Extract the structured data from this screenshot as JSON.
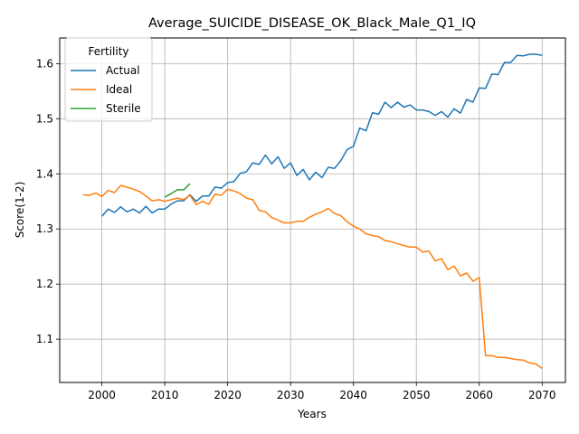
{
  "chart_data": {
    "type": "line",
    "title": "Average_SUICIDE_DISEASE_OK_Black_Male_Q1_IQ",
    "xlabel": "Years",
    "ylabel": "Score(1-2)",
    "xlim": [
      1993.3,
      2073.7
    ],
    "ylim": [
      1.0215,
      1.6465
    ],
    "xticks": [
      2000,
      2010,
      2020,
      2030,
      2040,
      2050,
      2060,
      2070
    ],
    "yticks": [
      1.1,
      1.2,
      1.3,
      1.4,
      1.5,
      1.6
    ],
    "grid": true,
    "legend": {
      "title": "Fertility",
      "placement": "upper-left"
    },
    "series": [
      {
        "name": "Actual",
        "color": "#1f77b4",
        "x": [
          2000,
          2001,
          2002,
          2003,
          2004,
          2005,
          2006,
          2007,
          2008,
          2009,
          2010,
          2011,
          2012,
          2013,
          2014,
          2015,
          2016,
          2017,
          2018,
          2019,
          2020,
          2021,
          2022,
          2023,
          2024,
          2025,
          2026,
          2027,
          2028,
          2029,
          2030,
          2031,
          2032,
          2033,
          2034,
          2035,
          2036,
          2037,
          2038,
          2039,
          2040,
          2041,
          2042,
          2043,
          2044,
          2045,
          2046,
          2047,
          2048,
          2049,
          2050,
          2051,
          2052,
          2053,
          2054,
          2055,
          2056,
          2057,
          2058,
          2059,
          2060,
          2061,
          2062,
          2063,
          2064,
          2065,
          2066,
          2067,
          2068,
          2069,
          2070
        ],
        "values": [
          1.323,
          1.336,
          1.33,
          1.34,
          1.331,
          1.336,
          1.329,
          1.341,
          1.329,
          1.336,
          1.336,
          1.345,
          1.351,
          1.351,
          1.362,
          1.35,
          1.36,
          1.36,
          1.376,
          1.374,
          1.384,
          1.386,
          1.401,
          1.404,
          1.42,
          1.417,
          1.434,
          1.418,
          1.431,
          1.41,
          1.42,
          1.397,
          1.408,
          1.389,
          1.403,
          1.393,
          1.412,
          1.41,
          1.424,
          1.444,
          1.45,
          1.483,
          1.478,
          1.511,
          1.508,
          1.53,
          1.52,
          1.53,
          1.521,
          1.525,
          1.516,
          1.516,
          1.513,
          1.506,
          1.513,
          1.503,
          1.518,
          1.51,
          1.535,
          1.53,
          1.556,
          1.555,
          1.581,
          1.58,
          1.602,
          1.602,
          1.615,
          1.614,
          1.617,
          1.617,
          1.615
        ]
      },
      {
        "name": "Ideal",
        "color": "#ff7f0e",
        "x": [
          1997,
          1998,
          1999,
          2000,
          2001,
          2002,
          2003,
          2004,
          2005,
          2006,
          2007,
          2008,
          2009,
          2010,
          2011,
          2012,
          2013,
          2014,
          2015,
          2016,
          2017,
          2018,
          2019,
          2020,
          2021,
          2022,
          2023,
          2024,
          2025,
          2026,
          2027,
          2028,
          2029,
          2030,
          2031,
          2032,
          2033,
          2034,
          2035,
          2036,
          2037,
          2038,
          2039,
          2040,
          2041,
          2042,
          2043,
          2044,
          2045,
          2046,
          2047,
          2048,
          2049,
          2050,
          2051,
          2052,
          2053,
          2054,
          2055,
          2056,
          2057,
          2058,
          2059,
          2060,
          2061,
          2062,
          2063,
          2064,
          2065,
          2066,
          2067,
          2068,
          2069,
          2070
        ],
        "values": [
          1.362,
          1.361,
          1.365,
          1.359,
          1.37,
          1.366,
          1.379,
          1.376,
          1.372,
          1.368,
          1.36,
          1.351,
          1.353,
          1.35,
          1.353,
          1.356,
          1.353,
          1.361,
          1.344,
          1.35,
          1.345,
          1.363,
          1.361,
          1.372,
          1.369,
          1.364,
          1.356,
          1.353,
          1.334,
          1.331,
          1.321,
          1.316,
          1.311,
          1.311,
          1.314,
          1.314,
          1.321,
          1.327,
          1.331,
          1.337,
          1.328,
          1.324,
          1.313,
          1.305,
          1.3,
          1.291,
          1.288,
          1.286,
          1.279,
          1.277,
          1.273,
          1.27,
          1.267,
          1.267,
          1.258,
          1.26,
          1.242,
          1.246,
          1.226,
          1.233,
          1.215,
          1.22,
          1.205,
          1.212,
          1.07,
          1.07,
          1.067,
          1.067,
          1.065,
          1.063,
          1.062,
          1.057,
          1.055,
          1.047
        ]
      },
      {
        "name": "Sterile",
        "color": "#2ca02c",
        "x": [
          2010,
          2011,
          2012,
          2013,
          2014
        ],
        "values": [
          1.358,
          1.364,
          1.371,
          1.371,
          1.382
        ]
      }
    ]
  }
}
